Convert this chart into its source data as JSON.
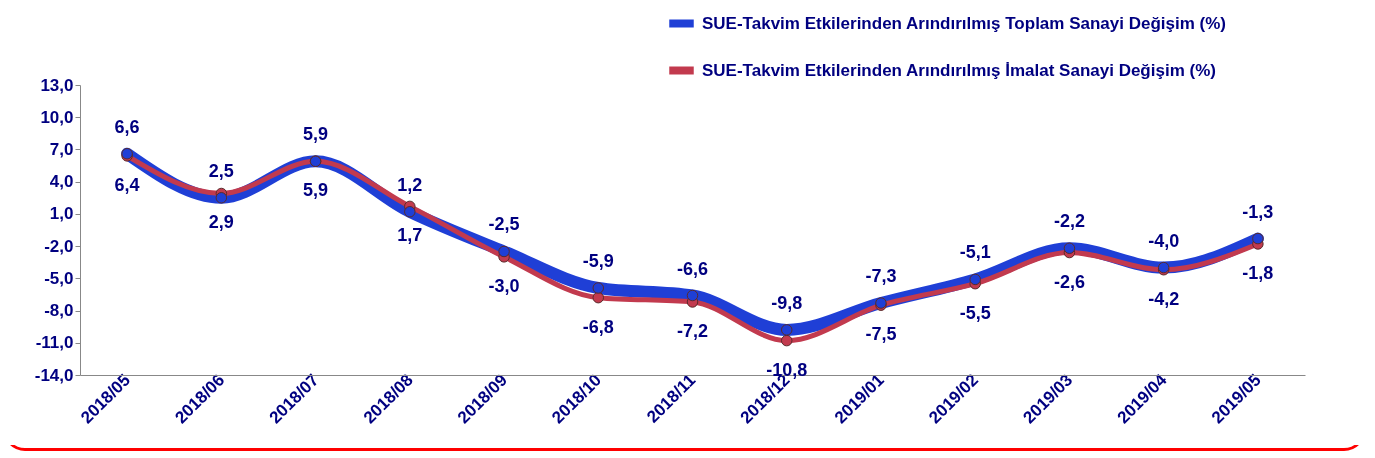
{
  "chart_data": {
    "type": "line",
    "categories": [
      "2018/05",
      "2018/06",
      "2018/07",
      "2018/08",
      "2018/09",
      "2018/10",
      "2018/11",
      "2018/12",
      "2019/01",
      "2019/02",
      "2019/03",
      "2019/04",
      "2019/05"
    ],
    "series": [
      {
        "name": "SUE-Takvim Etkilerinden Arındırılmış Toplam Sanayi Değişim (%)",
        "color": "#1f3fd6",
        "values": [
          6.6,
          2.5,
          5.9,
          1.2,
          -2.5,
          -5.9,
          -6.6,
          -9.8,
          -7.3,
          -5.1,
          -2.2,
          -4.0,
          -1.3
        ],
        "value_labels": [
          "6,6",
          "2,5",
          "5,9",
          "1,2",
          "-2,5",
          "-5,9",
          "-6,6",
          "-9,8",
          "-7,3",
          "-5,1",
          "-2,2",
          "-4,0",
          "-1,3"
        ]
      },
      {
        "name": "SUE-Takvim Etkilerinden Arındırılmış İmalat Sanayi Değişim (%)",
        "color": "#c23a4e",
        "values": [
          6.4,
          2.9,
          5.9,
          1.7,
          -3.0,
          -6.8,
          -7.2,
          -10.8,
          -7.5,
          -5.5,
          -2.6,
          -4.2,
          -1.8
        ],
        "value_labels": [
          "6,4",
          "2,9",
          "5,9",
          "1,7",
          "-3,0",
          "-6,8",
          "-7,2",
          "-10,8",
          "-7,5",
          "-5,5",
          "-2,6",
          "-4,2",
          "-1,8"
        ]
      }
    ],
    "ylim": [
      -14,
      13
    ],
    "yticks": [
      {
        "value": -14,
        "label": "-14,0"
      },
      {
        "value": -11,
        "label": "-11,0"
      },
      {
        "value": -8,
        "label": "-8,0"
      },
      {
        "value": -5,
        "label": "-5,0"
      },
      {
        "value": -2,
        "label": "-2,0"
      },
      {
        "value": 1,
        "label": "1,0"
      },
      {
        "value": 4,
        "label": "4,0"
      },
      {
        "value": 7,
        "label": "7,0"
      },
      {
        "value": 10,
        "label": "10,0"
      },
      {
        "value": 13,
        "label": "13,0"
      }
    ],
    "grid": false,
    "legend": "top right",
    "marker": "circle",
    "line_style": "solid",
    "data_labels": true
  }
}
